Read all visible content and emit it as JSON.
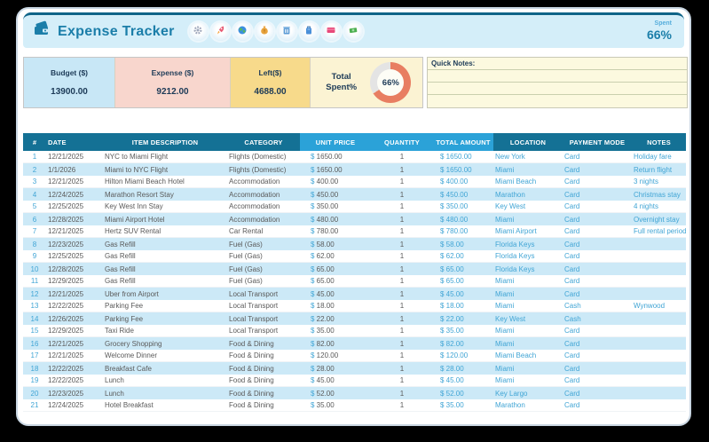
{
  "header": {
    "title": "Expense Tracker",
    "spent_label": "Spent",
    "spent_value": "66%",
    "icons": [
      "gear",
      "rocket",
      "globe",
      "money-bag",
      "trash",
      "luggage",
      "credit-card",
      "flying-money"
    ]
  },
  "summary": {
    "budget": {
      "label": "Budget ($)",
      "value": "13900.00"
    },
    "expense": {
      "label": "Expense ($)",
      "value": "9212.00"
    },
    "left": {
      "label": "Left($)",
      "value": "4688.00"
    },
    "total_spent": {
      "label": "Total Spent%",
      "value": "66%",
      "percent": 66
    }
  },
  "quick_notes": {
    "label": "Quick Notes:",
    "lines": [
      "",
      "",
      ""
    ]
  },
  "colors": {
    "accent": "#1B7EA9",
    "donut_fill": "#E87E62",
    "donut_track": "#E4E4E4",
    "table_header_dark": "#147195",
    "table_header_light": "#2BA2D8",
    "row_alt": "#CCE9F7",
    "budget_bg": "#C8E7F6",
    "expense_bg": "#F8D6CD",
    "left_bg": "#F7DA8B"
  },
  "table": {
    "currency": "$",
    "columns": [
      "#",
      "DATE",
      "ITEM DESCRIPTION",
      "CATEGORY",
      "UNIT PRICE",
      "QUANTITY",
      "TOTAL AMOUNT",
      "LOCATION",
      "PAYMENT MODE",
      "NOTES"
    ],
    "rows": [
      {
        "id": "1",
        "date": "12/21/2025",
        "item": "NYC to Miami Flight",
        "category": "Flights (Domestic)",
        "unit_price": "1650.00",
        "qty": "1",
        "total": "1650.00",
        "location": "New York",
        "payment": "Card",
        "notes": "Holiday fare"
      },
      {
        "id": "2",
        "date": "1/1/2026",
        "item": "Miami to NYC Flight",
        "category": "Flights (Domestic)",
        "unit_price": "1650.00",
        "qty": "1",
        "total": "1650.00",
        "location": "Miami",
        "payment": "Card",
        "notes": "Return flight"
      },
      {
        "id": "3",
        "date": "12/21/2025",
        "item": "Hilton Miami Beach Hotel",
        "category": "Accommodation",
        "unit_price": "400.00",
        "qty": "1",
        "total": "400.00",
        "location": "Miami Beach",
        "payment": "Card",
        "notes": "3 nights"
      },
      {
        "id": "4",
        "date": "12/24/2025",
        "item": "Marathon Resort Stay",
        "category": "Accommodation",
        "unit_price": "450.00",
        "qty": "1",
        "total": "450.00",
        "location": "Marathon",
        "payment": "Card",
        "notes": "Christmas stay"
      },
      {
        "id": "5",
        "date": "12/25/2025",
        "item": "Key West Inn Stay",
        "category": "Accommodation",
        "unit_price": "350.00",
        "qty": "1",
        "total": "350.00",
        "location": "Key West",
        "payment": "Card",
        "notes": "4 nights"
      },
      {
        "id": "6",
        "date": "12/28/2025",
        "item": "Miami Airport Hotel",
        "category": "Accommodation",
        "unit_price": "480.00",
        "qty": "1",
        "total": "480.00",
        "location": "Miami",
        "payment": "Card",
        "notes": "Overnight stay"
      },
      {
        "id": "7",
        "date": "12/21/2025",
        "item": "Hertz SUV Rental",
        "category": "Car Rental",
        "unit_price": "780.00",
        "qty": "1",
        "total": "780.00",
        "location": "Miami Airport",
        "payment": "Card",
        "notes": "Full rental period"
      },
      {
        "id": "8",
        "date": "12/23/2025",
        "item": "Gas Refill",
        "category": "Fuel (Gas)",
        "unit_price": "58.00",
        "qty": "1",
        "total": "58.00",
        "location": "Florida Keys",
        "payment": "Card",
        "notes": ""
      },
      {
        "id": "9",
        "date": "12/25/2025",
        "item": "Gas Refill",
        "category": "Fuel (Gas)",
        "unit_price": "62.00",
        "qty": "1",
        "total": "62.00",
        "location": "Florida Keys",
        "payment": "Card",
        "notes": ""
      },
      {
        "id": "10",
        "date": "12/28/2025",
        "item": "Gas Refill",
        "category": "Fuel (Gas)",
        "unit_price": "65.00",
        "qty": "1",
        "total": "65.00",
        "location": "Florida Keys",
        "payment": "Card",
        "notes": ""
      },
      {
        "id": "11",
        "date": "12/29/2025",
        "item": "Gas Refill",
        "category": "Fuel (Gas)",
        "unit_price": "65.00",
        "qty": "1",
        "total": "65.00",
        "location": "Miami",
        "payment": "Card",
        "notes": ""
      },
      {
        "id": "12",
        "date": "12/21/2025",
        "item": "Uber from Airport",
        "category": "Local Transport",
        "unit_price": "45.00",
        "qty": "1",
        "total": "45.00",
        "location": "Miami",
        "payment": "Card",
        "notes": ""
      },
      {
        "id": "13",
        "date": "12/22/2025",
        "item": "Parking Fee",
        "category": "Local Transport",
        "unit_price": "18.00",
        "qty": "1",
        "total": "18.00",
        "location": "Miami",
        "payment": "Cash",
        "notes": "Wynwood"
      },
      {
        "id": "14",
        "date": "12/26/2025",
        "item": "Parking Fee",
        "category": "Local Transport",
        "unit_price": "22.00",
        "qty": "1",
        "total": "22.00",
        "location": "Key West",
        "payment": "Cash",
        "notes": ""
      },
      {
        "id": "15",
        "date": "12/29/2025",
        "item": "Taxi Ride",
        "category": "Local Transport",
        "unit_price": "35.00",
        "qty": "1",
        "total": "35.00",
        "location": "Miami",
        "payment": "Card",
        "notes": ""
      },
      {
        "id": "16",
        "date": "12/21/2025",
        "item": "Grocery Shopping",
        "category": "Food & Dining",
        "unit_price": "82.00",
        "qty": "1",
        "total": "82.00",
        "location": "Miami",
        "payment": "Card",
        "notes": ""
      },
      {
        "id": "17",
        "date": "12/21/2025",
        "item": "Welcome Dinner",
        "category": "Food & Dining",
        "unit_price": "120.00",
        "qty": "1",
        "total": "120.00",
        "location": "Miami Beach",
        "payment": "Card",
        "notes": ""
      },
      {
        "id": "18",
        "date": "12/22/2025",
        "item": "Breakfast Cafe",
        "category": "Food & Dining",
        "unit_price": "28.00",
        "qty": "1",
        "total": "28.00",
        "location": "Miami",
        "payment": "Card",
        "notes": ""
      },
      {
        "id": "19",
        "date": "12/22/2025",
        "item": "Lunch",
        "category": "Food & Dining",
        "unit_price": "45.00",
        "qty": "1",
        "total": "45.00",
        "location": "Miami",
        "payment": "Card",
        "notes": ""
      },
      {
        "id": "20",
        "date": "12/23/2025",
        "item": "Lunch",
        "category": "Food & Dining",
        "unit_price": "52.00",
        "qty": "1",
        "total": "52.00",
        "location": "Key Largo",
        "payment": "Card",
        "notes": ""
      },
      {
        "id": "21",
        "date": "12/24/2025",
        "item": "Hotel Breakfast",
        "category": "Food & Dining",
        "unit_price": "35.00",
        "qty": "1",
        "total": "35.00",
        "location": "Marathon",
        "payment": "Card",
        "notes": ""
      }
    ]
  }
}
